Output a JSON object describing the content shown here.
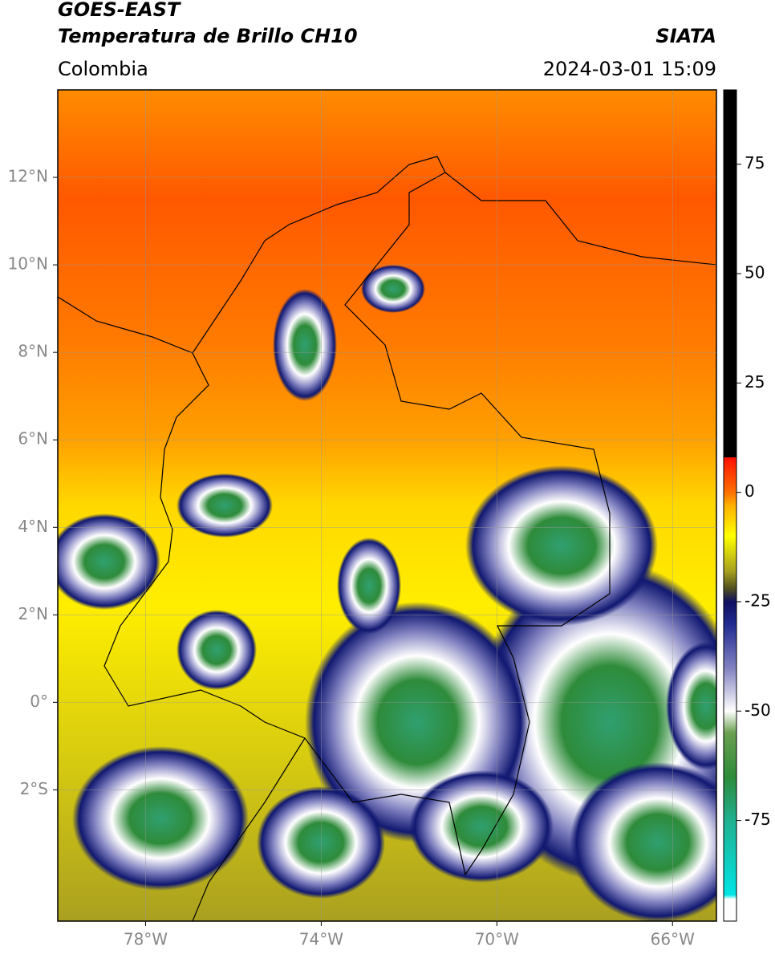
{
  "header": {
    "title": "GOES-EAST",
    "subtitle": "Temperatura de Brillo CH10",
    "source": "SIATA",
    "region": "Colombia",
    "datetime": "2024-03-01 15:09"
  },
  "map": {
    "lonlim": [
      -80,
      -65
    ],
    "latlim": [
      -5,
      14
    ],
    "grid": true,
    "lonticks": [
      {
        "value": -78,
        "label": "78°W"
      },
      {
        "value": -74,
        "label": "74°W"
      },
      {
        "value": -70,
        "label": "70°W"
      },
      {
        "value": -66,
        "label": "66°W"
      }
    ],
    "latticks": [
      {
        "value": 12,
        "label": "12°N"
      },
      {
        "value": 10,
        "label": "10°N"
      },
      {
        "value": 8,
        "label": "8°N"
      },
      {
        "value": 6,
        "label": "6°N"
      },
      {
        "value": 4,
        "label": "4°N"
      },
      {
        "value": 2,
        "label": "2°N"
      },
      {
        "value": 0,
        "label": "0°"
      },
      {
        "value": -2,
        "label": "2°S"
      }
    ]
  },
  "colorbar": {
    "lim": [
      -98,
      92
    ],
    "ticks": [
      75,
      50,
      25,
      0,
      -25,
      -50,
      -75
    ],
    "stops": [
      {
        "value": -98,
        "color": "#ffffff"
      },
      {
        "value": -93,
        "color": "#ffffff"
      },
      {
        "value": -92,
        "color": "#00e5e5"
      },
      {
        "value": -75,
        "color": "#20b090"
      },
      {
        "value": -65,
        "color": "#2e8b3a"
      },
      {
        "value": -55,
        "color": "#6aa050"
      },
      {
        "value": -50,
        "color": "#ffffff"
      },
      {
        "value": -40,
        "color": "#8080c0"
      },
      {
        "value": -30,
        "color": "#202a90"
      },
      {
        "value": -25,
        "color": "#101060"
      },
      {
        "value": -22,
        "color": "#505020"
      },
      {
        "value": -18,
        "color": "#a8a020"
      },
      {
        "value": -10,
        "color": "#ffff00"
      },
      {
        "value": -3,
        "color": "#ffb000"
      },
      {
        "value": 0,
        "color": "#ff7000"
      },
      {
        "value": 8,
        "color": "#ff1000"
      },
      {
        "value": 8.01,
        "color": "#000000"
      },
      {
        "value": 92,
        "color": "#000000"
      }
    ]
  }
}
